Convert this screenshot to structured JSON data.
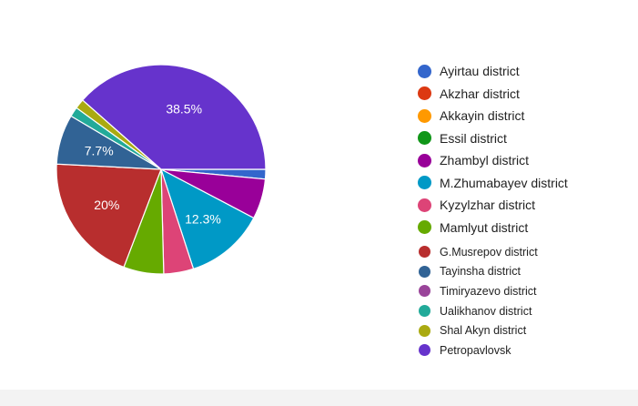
{
  "chart_data": {
    "type": "pie",
    "title": "",
    "slices": [
      {
        "label": "Ayirtau district",
        "value": 1.5,
        "color": "#3366cc"
      },
      {
        "label": "Akzhar district",
        "value": 0.0,
        "color": "#dc3912"
      },
      {
        "label": "Akkayin district",
        "value": 0.0,
        "color": "#ff9900"
      },
      {
        "label": "Essil district",
        "value": 0.0,
        "color": "#109618"
      },
      {
        "label": "Zhambyl district",
        "value": 6.2,
        "color": "#990099"
      },
      {
        "label": "M.Zhumabayev district",
        "value": 12.3,
        "color": "#0099c6"
      },
      {
        "label": "Kyzylzhar district",
        "value": 4.6,
        "color": "#dd4477"
      },
      {
        "label": "Mamlyut district",
        "value": 6.2,
        "color": "#66aa00"
      },
      {
        "label": "G.Musrepov district",
        "value": 20.0,
        "color": "#b82e2e"
      },
      {
        "label": "Tayinsha district",
        "value": 7.7,
        "color": "#316395"
      },
      {
        "label": "Timiryazevo district",
        "value": 0.0,
        "color": "#994499"
      },
      {
        "label": "Ualikhanov district",
        "value": 1.5,
        "color": "#22aa99"
      },
      {
        "label": "Shal Akyn district",
        "value": 1.5,
        "color": "#aaaa11"
      },
      {
        "label": "Petropavlovsk",
        "value": 38.5,
        "color": "#6633cc"
      }
    ],
    "data_labels": [
      {
        "slice": "Petropavlovsk",
        "text": "38.5%"
      },
      {
        "slice": "Tayinsha district",
        "text": "7.7%"
      },
      {
        "slice": "G.Musrepov district",
        "text": "20%"
      },
      {
        "slice": "M.Zhumabayev district",
        "text": "12.3%"
      }
    ],
    "legend_position": "right"
  }
}
